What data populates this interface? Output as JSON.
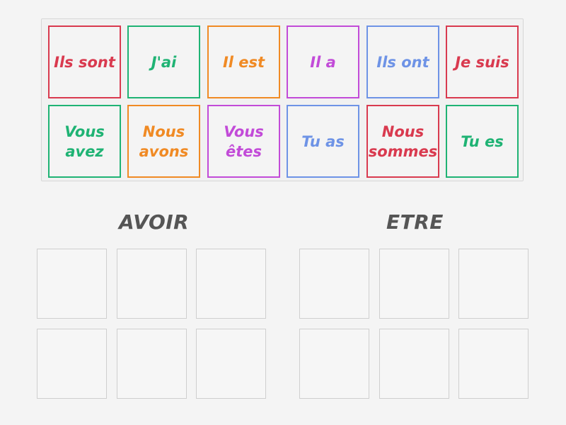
{
  "cards": [
    {
      "label": "Ils sont",
      "color": "#d93a4f"
    },
    {
      "label": "J'ai",
      "color": "#1fb374"
    },
    {
      "label": "Il est",
      "color": "#f08a24"
    },
    {
      "label": "Il a",
      "color": "#c24bd8"
    },
    {
      "label": "Ils ont",
      "color": "#6e93e6"
    },
    {
      "label": "Je suis",
      "color": "#d93a4f"
    },
    {
      "label": "Vous\navez",
      "color": "#1fb374"
    },
    {
      "label": "Nous\navons",
      "color": "#f08a24"
    },
    {
      "label": "Vous\nêtes",
      "color": "#c24bd8"
    },
    {
      "label": "Tu as",
      "color": "#6e93e6"
    },
    {
      "label": "Nous\nsommes",
      "color": "#d93a4f"
    },
    {
      "label": "Tu es",
      "color": "#1fb374"
    }
  ],
  "groups": {
    "avoir": {
      "title": "AVOIR",
      "slot_count": 6
    },
    "etre": {
      "title": "ETRE",
      "slot_count": 6
    }
  }
}
